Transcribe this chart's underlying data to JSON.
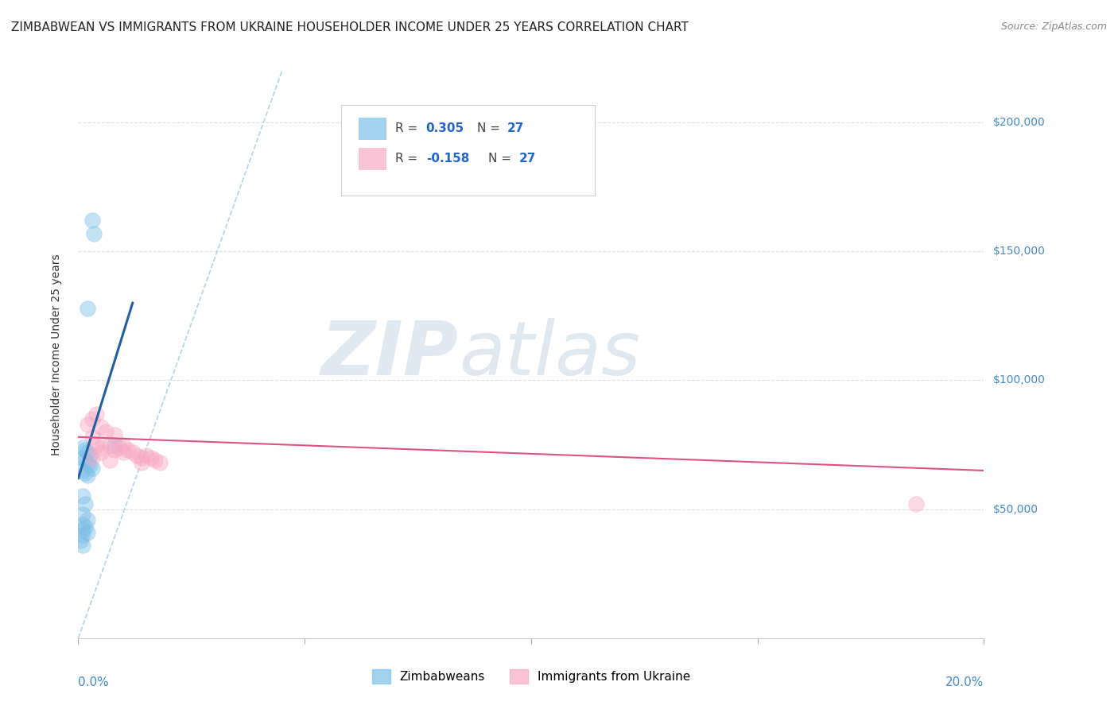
{
  "title": "ZIMBABWEAN VS IMMIGRANTS FROM UKRAINE HOUSEHOLDER INCOME UNDER 25 YEARS CORRELATION CHART",
  "source": "Source: ZipAtlas.com",
  "ylabel": "Householder Income Under 25 years",
  "ylim": [
    0,
    220000
  ],
  "xlim": [
    0.0,
    0.2
  ],
  "ytick_vals": [
    50000,
    100000,
    150000,
    200000
  ],
  "ytick_labels": [
    "$50,000",
    "$100,000",
    "$150,000",
    "$200,000"
  ],
  "watermark_zip": "ZIP",
  "watermark_atlas": "atlas",
  "legend_R_blue": "0.305",
  "legend_N_blue": "27",
  "legend_R_pink": "-0.158",
  "legend_N_pink": "27",
  "blue_x": [
    0.003,
    0.0035,
    0.002,
    0.008,
    0.001,
    0.0015,
    0.002,
    0.0025,
    0.001,
    0.0015,
    0.002,
    0.0025,
    0.003,
    0.001,
    0.0015,
    0.002,
    0.001,
    0.0015,
    0.001,
    0.002,
    0.001,
    0.0015,
    0.001,
    0.002,
    0.001,
    0.0005,
    0.001
  ],
  "blue_y": [
    162000,
    157000,
    128000,
    75000,
    74000,
    73000,
    72000,
    71000,
    70000,
    69000,
    68000,
    67000,
    66000,
    65000,
    64000,
    63000,
    55000,
    52000,
    48000,
    46000,
    44000,
    43000,
    42000,
    41000,
    40000,
    38000,
    36000
  ],
  "pink_x": [
    0.002,
    0.003,
    0.003,
    0.004,
    0.004,
    0.005,
    0.005,
    0.006,
    0.007,
    0.008,
    0.008,
    0.009,
    0.01,
    0.01,
    0.011,
    0.012,
    0.013,
    0.014,
    0.014,
    0.015,
    0.016,
    0.017,
    0.018,
    0.003,
    0.005,
    0.007,
    0.185
  ],
  "pink_y": [
    83000,
    85000,
    78000,
    87000,
    75000,
    82000,
    74000,
    80000,
    75000,
    79000,
    73000,
    74000,
    75000,
    72000,
    73000,
    72000,
    71000,
    70000,
    68000,
    71000,
    70000,
    69000,
    68000,
    70000,
    72000,
    69000,
    52000
  ],
  "blue_color": "#7bbfe8",
  "pink_color": "#f9a8c4",
  "blue_line_color": "#2060a0",
  "pink_line_color": "#e05080",
  "dashed_line_color": "#a8c8e8",
  "grid_color": "#d8d8d8",
  "background_color": "#ffffff",
  "title_fontsize": 11,
  "source_fontsize": 9,
  "axis_label_fontsize": 10,
  "tick_label_color": "#4488cc",
  "scatter_size": 200,
  "scatter_alpha": 0.45
}
